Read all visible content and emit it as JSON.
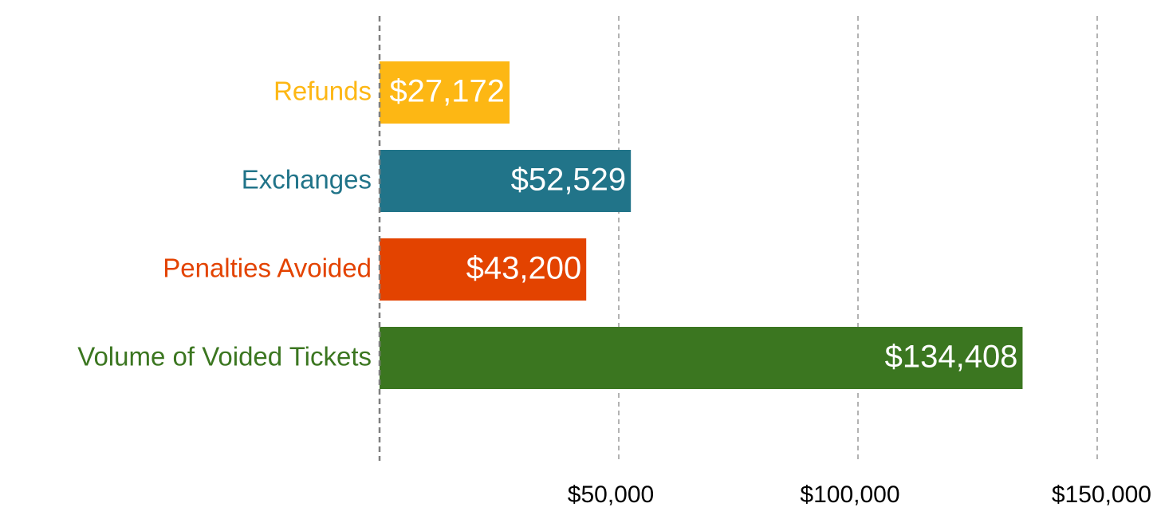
{
  "chart_data": {
    "type": "bar",
    "orientation": "horizontal",
    "title": "",
    "xlabel": "",
    "ylabel": "",
    "categories": [
      "Refunds",
      "Exchanges",
      "Penalties Avoided",
      "Volume of Voided Tickets"
    ],
    "values": [
      27172,
      52529,
      43200,
      134408
    ],
    "value_labels": [
      "$27,172",
      "$52,529",
      "$43,200",
      "$134,408"
    ],
    "colors": [
      "#FDB714",
      "#217489",
      "#E34300",
      "#3B7620"
    ],
    "xlim": [
      0,
      150000
    ],
    "xticks": [
      50000,
      100000,
      150000
    ],
    "xtick_labels": [
      "$50,000",
      "$100,000",
      "$150,000"
    ],
    "grid": "vertical-dashed",
    "legend": "none"
  }
}
